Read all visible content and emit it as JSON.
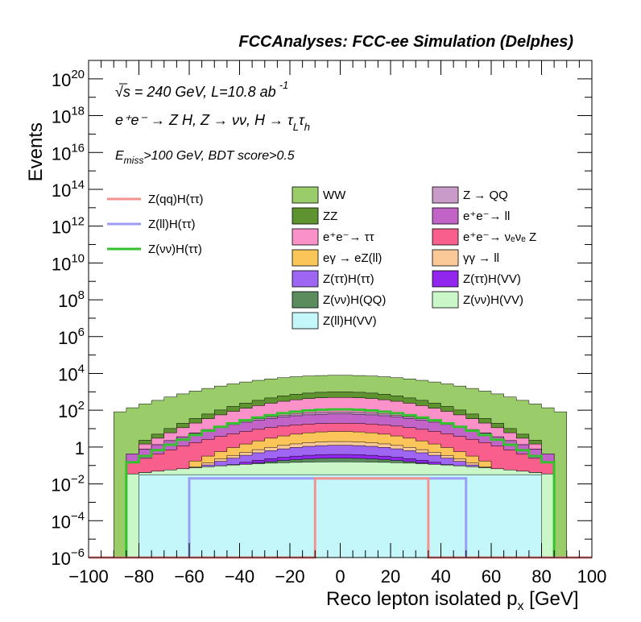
{
  "title": "FCCAnalyses: FCC-ee Simulation (Delphes)",
  "annotations": {
    "energy": "√s = 240 GeV, L=10.8 ab",
    "energy_exp": "-1",
    "process": "e⁺e⁻ → Z H, Z → νν, H → τ",
    "process_sub1": "L",
    "process_tau": "τ",
    "process_sub2": "h",
    "selection_pre": "E",
    "selection_sub": "miss",
    "selection_post": ">100 GeV, BDT score>0.5"
  },
  "axes": {
    "xlabel": "Reco lepton isolated p",
    "xlabel_sub": "x",
    "xlabel_unit": " [GeV]",
    "ylabel": "Events",
    "x_ticks": [
      "−100",
      "−80",
      "−60",
      "−40",
      "−20",
      "0",
      "20",
      "40",
      "60",
      "80",
      "100"
    ],
    "y_ticks": [
      {
        "base": "10",
        "exp": "−6",
        "e": -6
      },
      {
        "base": "10",
        "exp": "−4",
        "e": -4
      },
      {
        "base": "10",
        "exp": "−2",
        "e": -2
      },
      {
        "base": "1",
        "exp": "",
        "e": 0
      },
      {
        "base": "10",
        "exp": "2",
        "e": 2
      },
      {
        "base": "10",
        "exp": "4",
        "e": 4
      },
      {
        "base": "10",
        "exp": "6",
        "e": 6
      },
      {
        "base": "10",
        "exp": "8",
        "e": 8
      },
      {
        "base": "10",
        "exp": "10",
        "e": 10
      },
      {
        "base": "10",
        "exp": "12",
        "e": 12
      },
      {
        "base": "10",
        "exp": "14",
        "e": 14
      },
      {
        "base": "10",
        "exp": "16",
        "e": 16
      },
      {
        "base": "10",
        "exp": "18",
        "e": 18
      },
      {
        "base": "10",
        "exp": "20",
        "e": 20
      }
    ]
  },
  "legend_signals": [
    {
      "label": "Z(qq)H(ττ)",
      "color": "#f5918f"
    },
    {
      "label": "Z(ll)H(ττ)",
      "color": "#9d9df3"
    },
    {
      "label": "Z(νν)H(ττ)",
      "color": "#33c12e"
    }
  ],
  "legend_backgrounds": [
    {
      "label": "WW",
      "color": "#9acd6a"
    },
    {
      "label": "Z → QQ",
      "color": "#c89bc8"
    },
    {
      "label": "ZZ",
      "color": "#5f9330"
    },
    {
      "label": "e⁺e⁻→ ll",
      "color": "#c264c7"
    },
    {
      "label": "e⁺e⁻→ ττ",
      "color": "#fa91c8"
    },
    {
      "label": "e⁺e⁻→ νₑνₑ Z",
      "color": "#f85f8c"
    },
    {
      "label": "eγ → eZ(ll)",
      "color": "#fcc55a"
    },
    {
      "label": "γγ → ll",
      "color": "#fbc898"
    },
    {
      "label": "Z(ττ)H(ττ)",
      "color": "#9e66f3"
    },
    {
      "label": "Z(ττ)H(VV)",
      "color": "#9226ee"
    },
    {
      "label": "Z(νν)H(QQ)",
      "color": "#5b8c5e"
    },
    {
      "label": "Z(νν)H(VV)",
      "color": "#caf7c8"
    },
    {
      "label": "Z(ll)H(VV)",
      "color": "#c3f7fa"
    }
  ],
  "chart_data": {
    "type": "area",
    "title": "FCCAnalyses: FCC-ee Simulation (Delphes)",
    "xlabel": "Reco lepton isolated p_x [GeV]",
    "ylabel": "Events",
    "xlim": [
      -100,
      100
    ],
    "ylim_log10": [
      -6,
      21
    ],
    "log_y": true,
    "bin_width_gev": 5,
    "stack_order": "bottom to top",
    "stacked_backgrounds": [
      {
        "name": "Z(ll)H(VV)",
        "color": "#c3f7fa",
        "x_range": [
          -80,
          80
        ],
        "plateau_log10": -1.5
      },
      {
        "name": "Z(νν)H(VV)",
        "color": "#caf7c8",
        "x_range": [
          -85,
          85
        ],
        "peak_log10": -0.8,
        "edge_log10": -1.5
      },
      {
        "name": "Z(νν)H(QQ)",
        "color": "#5b8c5e",
        "x_range": [
          -75,
          75
        ],
        "peak_log10": -0.6,
        "edge_log10": -2.0
      },
      {
        "name": "Z(ττ)H(VV)",
        "color": "#9226ee",
        "x_range": [
          -60,
          60
        ],
        "peak_log10": -0.4,
        "edge_log10": -1.5
      },
      {
        "name": "Z(ττ)H(ττ)",
        "color": "#9e66f3",
        "x_range": [
          -60,
          60
        ],
        "peak_log10": 0.1,
        "edge_log10": -1.3
      },
      {
        "name": "γγ → ll",
        "color": "#fbc898",
        "x_range": [
          -60,
          60
        ],
        "peak_log10": 0.3,
        "edge_log10": -1.2
      },
      {
        "name": "eγ → eZ(ll)",
        "color": "#fcc55a",
        "x_range": [
          -60,
          60
        ],
        "peak_log10": 0.85,
        "edge_log10": -0.9
      },
      {
        "name": "e⁺e⁻→ νₑνₑ Z",
        "color": "#f85f8c",
        "x_range": [
          -85,
          85
        ],
        "peak_log10": 1.3,
        "edge_log10": -1.0
      },
      {
        "name": "e⁺e⁻→ ll",
        "color": "#c264c7",
        "x_range": [
          -85,
          85
        ],
        "peak_log10": 1.8,
        "edge_log10": -0.5
      },
      {
        "name": "Z → QQ",
        "color": "#c89bc8",
        "x_range": [
          -80,
          80
        ],
        "peak_log10": 1.9,
        "edge_log10": -0.3
      },
      {
        "name": "e⁺e⁻→ ττ",
        "color": "#fa91c8",
        "x_range": [
          -80,
          80
        ],
        "peak_log10": 2.7,
        "edge_log10": 0.0
      },
      {
        "name": "ZZ",
        "color": "#5f9330",
        "x_range": [
          -80,
          80
        ],
        "peak_log10": 3.0,
        "edge_log10": 0.2
      },
      {
        "name": "WW",
        "color": "#9acd6a",
        "x_range": [
          -90,
          90
        ],
        "peak_log10": 3.9,
        "edge_log10": 1.8
      }
    ],
    "signals": [
      {
        "name": "Z(νν)H(ττ)",
        "color": "#33c12e",
        "x_range": [
          -85,
          85
        ],
        "peak_log10": 2.05,
        "edge_log10": -1.0
      },
      {
        "name": "Z(ll)H(ττ)",
        "color": "#9d9df3",
        "x_range": [
          -60,
          50
        ],
        "level_log10": -1.7
      },
      {
        "name": "Z(qq)H(ττ)",
        "color": "#f5918f",
        "x_range": [
          -10,
          35
        ],
        "level_log10": -1.7
      }
    ]
  }
}
